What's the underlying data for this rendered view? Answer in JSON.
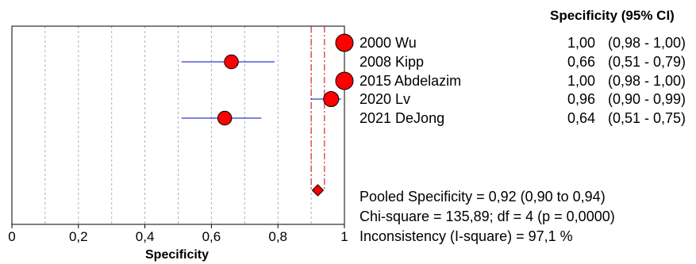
{
  "chart_data": {
    "type": "forest",
    "header": "Specificity (95% CI)",
    "xlabel": "Specificity",
    "xlim": [
      0,
      1
    ],
    "x_ticks": [
      "0",
      "0,2",
      "0,4",
      "0,6",
      "0,8",
      "1"
    ],
    "studies": [
      {
        "label": "2000 Wu",
        "estimate": 1.0,
        "ci": [
          0.98,
          1.0
        ],
        "estimate_text": "1,00",
        "ci_text": "(0,98 - 1,00)",
        "weight": 1.0
      },
      {
        "label": "2008 Kipp",
        "estimate": 0.66,
        "ci": [
          0.51,
          0.79
        ],
        "estimate_text": "0,66",
        "ci_text": "(0,51 - 0,79)",
        "weight": 0.55
      },
      {
        "label": "2015  Abdelazim",
        "estimate": 1.0,
        "ci": [
          0.98,
          1.0
        ],
        "estimate_text": "1,00",
        "ci_text": "(0,98 - 1,00)",
        "weight": 1.0
      },
      {
        "label": "2020 Lv",
        "estimate": 0.96,
        "ci": [
          0.9,
          0.99
        ],
        "estimate_text": "0,96",
        "ci_text": "(0,90 - 0,99)",
        "weight": 0.7
      },
      {
        "label": "2021 DeJong",
        "estimate": 0.64,
        "ci": [
          0.51,
          0.75
        ],
        "estimate_text": "0,64",
        "ci_text": "(0,51 - 0,75)",
        "weight": 0.55
      }
    ],
    "pooled": {
      "estimate": 0.92,
      "ci": [
        0.9,
        0.94
      ]
    },
    "summary_lines": [
      "Pooled Specificity = 0,92 (0,90 to 0,94)",
      "Chi-square = 135,89; df =  4 (p = 0,0000)",
      "Inconsistency (I-square) = 97,1 %"
    ],
    "colors": {
      "marker": "#ff0000",
      "ci_line": "#0000cc",
      "pooled_line": "#cc0000",
      "grid": "#b0b0b0"
    }
  }
}
